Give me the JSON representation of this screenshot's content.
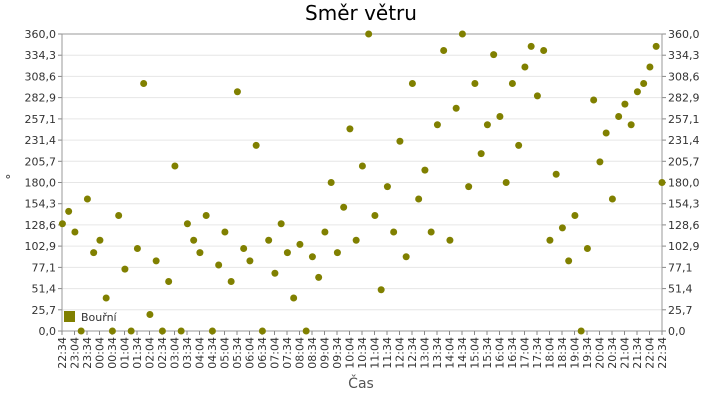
{
  "chart_data": {
    "type": "scatter",
    "title": "Směr větru",
    "x_label": "Čas",
    "y_label": "°",
    "legend": "lower left",
    "grid": true,
    "ylim": [
      0,
      360
    ],
    "yticks": [
      {
        "value": 0,
        "label": "0,0"
      },
      {
        "value": 25.7,
        "label": "25,7"
      },
      {
        "value": 51.4,
        "label": "51,4"
      },
      {
        "value": 77.1,
        "label": "77,1"
      },
      {
        "value": 102.9,
        "label": "102,9"
      },
      {
        "value": 128.6,
        "label": "128,6"
      },
      {
        "value": 154.3,
        "label": "154,3"
      },
      {
        "value": 180,
        "label": "180,0"
      },
      {
        "value": 205.7,
        "label": "205,7"
      },
      {
        "value": 231.4,
        "label": "231,4"
      },
      {
        "value": 257.1,
        "label": "257,1"
      },
      {
        "value": 282.9,
        "label": "282,9"
      },
      {
        "value": 308.6,
        "label": "308,6"
      },
      {
        "value": 334.3,
        "label": "334,3"
      },
      {
        "value": 360,
        "label": "360,0"
      }
    ],
    "xticks": [
      "22:34",
      "23:04",
      "23:34",
      "00:04",
      "00:34",
      "01:04",
      "01:34",
      "02:04",
      "02:34",
      "03:04",
      "03:34",
      "04:04",
      "04:34",
      "05:04",
      "05:34",
      "06:04",
      "06:34",
      "07:04",
      "07:34",
      "08:04",
      "08:34",
      "09:04",
      "09:34",
      "10:04",
      "10:34",
      "11:04",
      "11:34",
      "12:04",
      "12:34",
      "13:04",
      "13:34",
      "14:04",
      "14:34",
      "15:04",
      "15:34",
      "16:04",
      "16:34",
      "17:04",
      "17:34",
      "18:04",
      "18:34",
      "19:04",
      "19:34",
      "20:04",
      "20:34",
      "21:04",
      "21:34",
      "22:04",
      "22:34"
    ],
    "series": [
      {
        "name": "Bouřní",
        "color": "#808000",
        "x": [
          "22:35",
          "22:50",
          "23:05",
          "23:20",
          "23:35",
          "23:50",
          "00:05",
          "00:20",
          "00:35",
          "00:50",
          "01:05",
          "01:20",
          "01:35",
          "01:50",
          "02:05",
          "02:20",
          "02:35",
          "02:50",
          "03:05",
          "03:20",
          "03:35",
          "03:50",
          "04:05",
          "04:20",
          "04:35",
          "04:50",
          "05:05",
          "05:20",
          "05:35",
          "05:50",
          "06:05",
          "06:20",
          "06:35",
          "06:50",
          "07:05",
          "07:20",
          "07:35",
          "07:50",
          "08:05",
          "08:20",
          "08:35",
          "08:50",
          "09:05",
          "09:20",
          "09:35",
          "09:50",
          "10:05",
          "10:20",
          "10:35",
          "10:50",
          "11:05",
          "11:20",
          "11:35",
          "11:50",
          "12:05",
          "12:20",
          "12:35",
          "12:50",
          "13:05",
          "13:20",
          "13:35",
          "13:50",
          "14:05",
          "14:20",
          "14:35",
          "14:50",
          "15:05",
          "15:20",
          "15:35",
          "15:50",
          "16:05",
          "16:20",
          "16:35",
          "16:50",
          "17:05",
          "17:20",
          "17:35",
          "17:50",
          "18:05",
          "18:20",
          "18:35",
          "18:50",
          "19:05",
          "19:20",
          "19:35",
          "19:50",
          "20:05",
          "20:20",
          "20:35",
          "20:50",
          "21:05",
          "21:20",
          "21:35",
          "21:50",
          "22:05",
          "22:20",
          "22:34"
        ],
        "values": [
          130,
          145,
          120,
          0,
          160,
          95,
          110,
          40,
          0,
          140,
          75,
          0,
          100,
          300,
          20,
          85,
          0,
          60,
          200,
          0,
          130,
          110,
          95,
          140,
          0,
          80,
          120,
          60,
          290,
          100,
          85,
          225,
          0,
          110,
          70,
          130,
          95,
          40,
          105,
          0,
          90,
          65,
          120,
          180,
          95,
          150,
          245,
          110,
          200,
          360,
          140,
          50,
          175,
          120,
          230,
          90,
          300,
          160,
          195,
          120,
          250,
          340,
          110,
          270,
          360,
          175,
          300,
          215,
          250,
          335,
          260,
          180,
          300,
          225,
          320,
          345,
          285,
          340,
          110,
          190,
          125,
          85,
          140,
          0,
          100,
          280,
          205,
          240,
          160,
          260,
          275,
          250,
          290,
          300,
          320,
          345,
          180
        ]
      }
    ]
  }
}
